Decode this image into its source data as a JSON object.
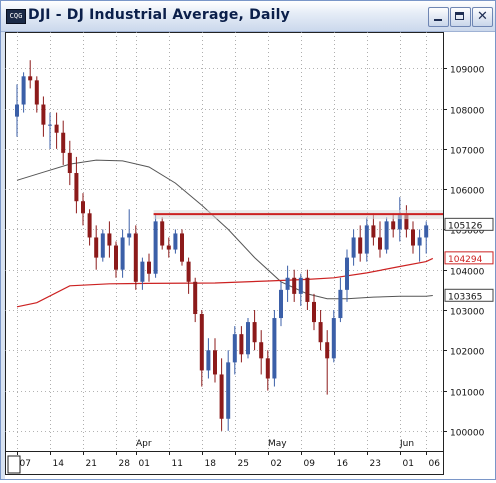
{
  "window": {
    "title": "DJI - DJ Industrial Average, Daily",
    "icon_label": "CQG"
  },
  "colors": {
    "up": "#3b5fa8",
    "down": "#8c1a1a",
    "ma_fast": "#cc2222",
    "ma_slow": "#555555",
    "hline": "#cc2222",
    "grid": "#9a9a9a"
  },
  "chart_data": {
    "type": "candlestick",
    "title": "DJ Industrial Average, Daily",
    "ylim": [
      9950,
      10990
    ],
    "yticks": [
      10000,
      10100,
      10200,
      10300,
      10400,
      10500,
      10600,
      10700,
      10800,
      10900
    ],
    "ytick_labels": [
      "100000",
      "101000",
      "102000",
      "103000",
      "104000",
      "105000",
      "106000",
      "107000",
      "108000",
      "109000"
    ],
    "price_labels": [
      {
        "label": "105126",
        "value": 10512.6,
        "style": "dark"
      },
      {
        "label": "104294",
        "value": 10429.4,
        "style": "red"
      },
      {
        "label": "103365",
        "value": 10336.5,
        "style": "dark"
      }
    ],
    "resistance_level": 10538,
    "xlabels": [
      {
        "label": "07",
        "index": 0
      },
      {
        "label": "14",
        "index": 5
      },
      {
        "label": "21",
        "index": 10
      },
      {
        "label": "28",
        "index": 15
      },
      {
        "label": "01",
        "index": 18
      },
      {
        "label": "11",
        "index": 23
      },
      {
        "label": "18",
        "index": 28
      },
      {
        "label": "25",
        "index": 33
      },
      {
        "label": "02",
        "index": 38
      },
      {
        "label": "09",
        "index": 43
      },
      {
        "label": "16",
        "index": 48
      },
      {
        "label": "23",
        "index": 53
      },
      {
        "label": "01",
        "index": 58
      },
      {
        "label": "06",
        "index": 62
      }
    ],
    "month_labels": [
      {
        "label": "Apr",
        "index": 18
      },
      {
        "label": "May",
        "index": 38
      },
      {
        "label": "Jun",
        "index": 58
      }
    ],
    "candles": [
      [
        10780,
        10860,
        10730,
        10810
      ],
      [
        10810,
        10890,
        10790,
        10880
      ],
      [
        10880,
        10920,
        10850,
        10870
      ],
      [
        10870,
        10880,
        10790,
        10810
      ],
      [
        10810,
        10830,
        10730,
        10760
      ],
      [
        10760,
        10790,
        10700,
        10760
      ],
      [
        10760,
        10790,
        10700,
        10740
      ],
      [
        10740,
        10770,
        10660,
        10690
      ],
      [
        10690,
        10720,
        10610,
        10640
      ],
      [
        10640,
        10680,
        10540,
        10570
      ],
      [
        10570,
        10590,
        10510,
        10540
      ],
      [
        10540,
        10550,
        10460,
        10480
      ],
      [
        10480,
        10510,
        10400,
        10430
      ],
      [
        10430,
        10500,
        10420,
        10490
      ],
      [
        10490,
        10520,
        10430,
        10460
      ],
      [
        10460,
        10470,
        10380,
        10400
      ],
      [
        10400,
        10500,
        10380,
        10480
      ],
      [
        10480,
        10550,
        10460,
        10490
      ],
      [
        10490,
        10510,
        10350,
        10370
      ],
      [
        10370,
        10430,
        10350,
        10420
      ],
      [
        10420,
        10440,
        10370,
        10390
      ],
      [
        10390,
        10540,
        10380,
        10520
      ],
      [
        10520,
        10530,
        10450,
        10460
      ],
      [
        10460,
        10480,
        10430,
        10450
      ],
      [
        10450,
        10500,
        10440,
        10490
      ],
      [
        10490,
        10500,
        10410,
        10420
      ],
      [
        10420,
        10430,
        10340,
        10370
      ],
      [
        10370,
        10380,
        10270,
        10290
      ],
      [
        10290,
        10300,
        10110,
        10150
      ],
      [
        10150,
        10230,
        10130,
        10200
      ],
      [
        10200,
        10230,
        10120,
        10140
      ],
      [
        10140,
        10180,
        10000,
        10030
      ],
      [
        10030,
        10200,
        10000,
        10170
      ],
      [
        10170,
        10260,
        10140,
        10240
      ],
      [
        10240,
        10260,
        10170,
        10190
      ],
      [
        10190,
        10280,
        10180,
        10270
      ],
      [
        10270,
        10300,
        10200,
        10220
      ],
      [
        10220,
        10250,
        10140,
        10180
      ],
      [
        10180,
        10200,
        10100,
        10130
      ],
      [
        10130,
        10300,
        10110,
        10280
      ],
      [
        10280,
        10370,
        10260,
        10350
      ],
      [
        10350,
        10410,
        10320,
        10380
      ],
      [
        10380,
        10400,
        10320,
        10340
      ],
      [
        10340,
        10390,
        10310,
        10380
      ],
      [
        10380,
        10400,
        10300,
        10320
      ],
      [
        10320,
        10340,
        10250,
        10270
      ],
      [
        10270,
        10300,
        10200,
        10220
      ],
      [
        10220,
        10250,
        10090,
        10180
      ],
      [
        10180,
        10300,
        10170,
        10280
      ],
      [
        10280,
        10380,
        10270,
        10350
      ],
      [
        10350,
        10450,
        10320,
        10430
      ],
      [
        10430,
        10500,
        10410,
        10480
      ],
      [
        10480,
        10510,
        10420,
        10440
      ],
      [
        10440,
        10530,
        10420,
        10510
      ],
      [
        10510,
        10540,
        10460,
        10480
      ],
      [
        10480,
        10520,
        10430,
        10450
      ],
      [
        10450,
        10530,
        10440,
        10520
      ],
      [
        10520,
        10540,
        10480,
        10500
      ],
      [
        10500,
        10580,
        10470,
        10540
      ],
      [
        10540,
        10560,
        10480,
        10500
      ],
      [
        10500,
        10520,
        10440,
        10460
      ],
      [
        10460,
        10500,
        10420,
        10480
      ],
      [
        10480,
        10520,
        10440,
        10510
      ]
    ],
    "ma_fast": [
      [
        0,
        10308
      ],
      [
        3,
        10318
      ],
      [
        8,
        10360
      ],
      [
        14,
        10365
      ],
      [
        20,
        10366
      ],
      [
        30,
        10367
      ],
      [
        38,
        10372
      ],
      [
        44,
        10376
      ],
      [
        48,
        10380
      ],
      [
        53,
        10392
      ],
      [
        58,
        10408
      ],
      [
        62,
        10420
      ],
      [
        63,
        10428
      ]
    ],
    "ma_slow": [
      [
        0,
        10622
      ],
      [
        4,
        10642
      ],
      [
        8,
        10662
      ],
      [
        12,
        10672
      ],
      [
        16,
        10670
      ],
      [
        20,
        10655
      ],
      [
        24,
        10615
      ],
      [
        28,
        10560
      ],
      [
        32,
        10500
      ],
      [
        36,
        10430
      ],
      [
        40,
        10370
      ],
      [
        44,
        10340
      ],
      [
        47,
        10328
      ],
      [
        50,
        10328
      ],
      [
        54,
        10332
      ],
      [
        58,
        10334
      ],
      [
        62,
        10334
      ],
      [
        63,
        10336
      ]
    ]
  }
}
